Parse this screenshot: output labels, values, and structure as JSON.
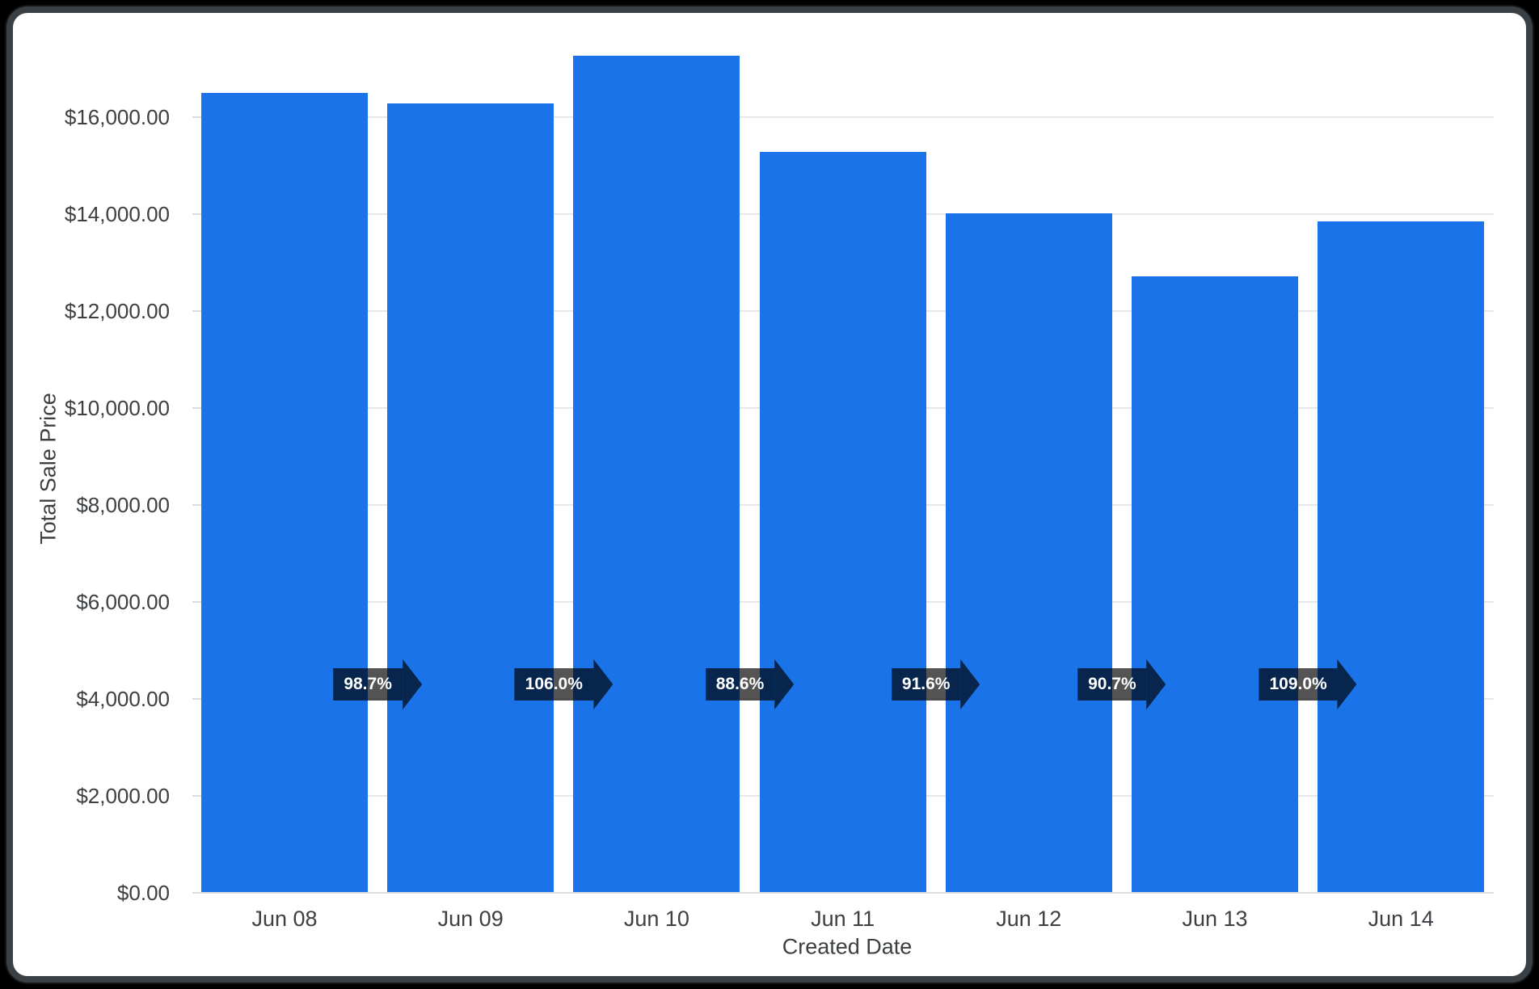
{
  "frame": {
    "outer_background": "#000000",
    "border_color": "#3a4043",
    "card_background": "#ffffff"
  },
  "chart_data": {
    "type": "bar",
    "title": "",
    "xlabel": "Created Date",
    "ylabel": "Total Sale Price",
    "categories": [
      "Jun 08",
      "Jun 09",
      "Jun 10",
      "Jun 11",
      "Jun 12",
      "Jun 13",
      "Jun 14"
    ],
    "values": [
      16500,
      16290,
      17260,
      15290,
      14010,
      12710,
      13850
    ],
    "percent_change_labels": [
      "98.7%",
      "106.0%",
      "88.6%",
      "91.6%",
      "90.7%",
      "109.0%"
    ],
    "y_ticks": [
      {
        "value": 0,
        "label": "$0.00"
      },
      {
        "value": 2000,
        "label": "$2,000.00"
      },
      {
        "value": 4000,
        "label": "$4,000.00"
      },
      {
        "value": 6000,
        "label": "$6,000.00"
      },
      {
        "value": 8000,
        "label": "$8,000.00"
      },
      {
        "value": 10000,
        "label": "$10,000.00"
      },
      {
        "value": 12000,
        "label": "$12,000.00"
      },
      {
        "value": 14000,
        "label": "$14,000.00"
      },
      {
        "value": 16000,
        "label": "$16,000.00"
      }
    ],
    "ylim": [
      0,
      17660
    ],
    "grid": "horizontal",
    "legend": "none",
    "bar_color": "#1a73e8",
    "badge_color_rgba": "rgba(0,0,0,0.67)",
    "badge_text_color": "#ffffff",
    "axis_text_color": "#3c4043",
    "gridline_color": "#e8e8e8",
    "baseline_color": "#dadce0"
  }
}
